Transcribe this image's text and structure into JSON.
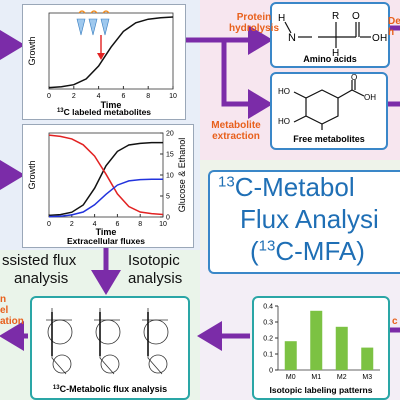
{
  "panels": {
    "labeled": {
      "y_axis": "Growth",
      "x_axis": "Time",
      "x_ticks": [
        "0",
        "2",
        "4",
        "6",
        "8",
        "10"
      ],
      "caption_sup": "13",
      "caption_rest": "C labeled metabolites"
    },
    "extracellular": {
      "y_axis": "Growth",
      "y2_axis": "Glucose & Ethanol",
      "x_axis": "Time",
      "x_ticks": [
        "0",
        "2",
        "4",
        "6",
        "8",
        "10"
      ],
      "y2_ticks": [
        "0",
        "5",
        "10",
        "15",
        "20"
      ],
      "caption": "Extracellular fluxes"
    },
    "amino_acids": {
      "title": "Amino acids",
      "atoms": [
        "H",
        "R",
        "H",
        "O",
        "C",
        "C",
        "N",
        "O",
        "H",
        "H"
      ]
    },
    "free_metabolites": {
      "title": "Free metabolites",
      "atoms": [
        "HO",
        "OH",
        "HO",
        "O"
      ]
    },
    "labeling": {
      "caption": "Isotopic labeling patterns",
      "categories": [
        "M0",
        "M1",
        "M2",
        "M3"
      ],
      "values": [
        0.18,
        0.37,
        0.27,
        0.14
      ],
      "y_ticks": [
        "0",
        "0.1",
        "0.2",
        "0.3",
        "0.4"
      ],
      "bar_color": "#7cc243"
    },
    "flux_map": {
      "caption_sup": "13",
      "caption_rest": "C-Metabolic flux analysis"
    }
  },
  "steps": {
    "protein_hydrolysis": [
      "Protein",
      "hydrolysis"
    ],
    "metabolite_extraction": [
      "Metabolite",
      "extraction"
    ],
    "right_top": [
      "De",
      "h"
    ],
    "right_bottom": "c",
    "bottom_left_top": [
      "n",
      "el",
      "ation"
    ],
    "isotopic_analysis": [
      "Isotopic",
      "analysis"
    ],
    "assisted": [
      "ssisted flux",
      "analysis"
    ]
  },
  "title": {
    "line1_sup": "13",
    "line1_rest": "C-Metabol",
    "line2": "Flux Analysi",
    "line3_pre": "(",
    "line3_sup": "13",
    "line3_rest": "C-MFA)"
  },
  "colors": {
    "arrow": "#7b2ca8",
    "accent_text": "#e8601c",
    "title_blue": "#1f6fb5",
    "red_curve": "#e22222",
    "blue_curve": "#2233dd"
  },
  "chart_data": [
    {
      "type": "line",
      "title": "13C labeled metabolites",
      "xlabel": "Time",
      "ylabel": "Growth",
      "xlim": [
        0,
        10
      ],
      "series": [
        {
          "x": [
            0,
            1,
            2,
            3,
            4,
            5,
            6,
            7,
            8,
            9,
            10
          ],
          "values": [
            0.02,
            0.03,
            0.06,
            0.14,
            0.32,
            0.58,
            0.8,
            0.92,
            0.97,
            0.99,
            1.0
          ]
        }
      ]
    },
    {
      "type": "line",
      "title": "Extracellular fluxes",
      "xlabel": "Time",
      "ylabel": "Growth",
      "y2label": "Glucose & Ethanol",
      "xlim": [
        0,
        10
      ],
      "y2lim": [
        0,
        20
      ],
      "series": [
        {
          "x": [
            0,
            1,
            2,
            3,
            4,
            5,
            6,
            7,
            8,
            9,
            10
          ],
          "values": [
            0.02,
            0.03,
            0.06,
            0.15,
            0.36,
            0.64,
            0.82,
            0.9,
            0.92,
            0.93,
            0.93
          ]
        },
        {
          "x": [
            0,
            1,
            2,
            3,
            4,
            5,
            6,
            7,
            8,
            9,
            10
          ],
          "values": [
            19.5,
            19.2,
            18.6,
            17.2,
            14.5,
            10.2,
            5.5,
            2.5,
            1.2,
            0.8,
            0.6
          ]
        },
        {
          "x": [
            0,
            1,
            2,
            3,
            4,
            5,
            6,
            7,
            8,
            9,
            10
          ],
          "values": [
            0.1,
            0.2,
            0.5,
            1.2,
            2.9,
            5.4,
            7.6,
            8.6,
            8.9,
            9.0,
            9.0
          ]
        }
      ]
    },
    {
      "type": "bar",
      "title": "Isotopic labeling patterns",
      "categories": [
        "M0",
        "M1",
        "M2",
        "M3"
      ],
      "values": [
        0.18,
        0.37,
        0.27,
        0.14
      ],
      "ylim": [
        0,
        0.4
      ]
    }
  ]
}
